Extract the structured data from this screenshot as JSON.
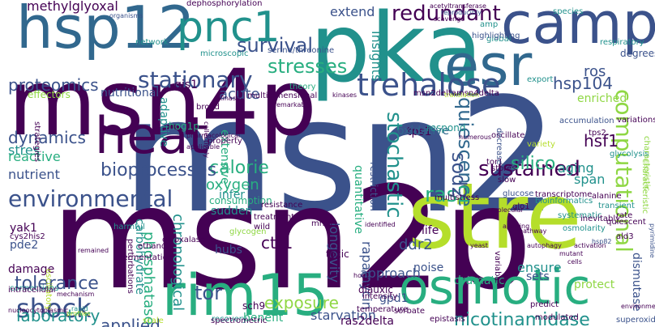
{
  "background": "#ffffff",
  "palette": {
    "dark_purple": "#440154",
    "indigo": "#3b528b",
    "blue": "#31688e",
    "teal": "#21918c",
    "green_teal": "#28ae80",
    "green": "#5ec962",
    "lime": "#8fd744",
    "yellow_green": "#b5de2b",
    "yellow": "#fde725"
  },
  "words": [
    "msn2",
    "msn2p",
    "msn4p",
    "pka",
    "stre",
    "esr",
    "camp",
    "hsp12",
    "pnc1",
    "rim15",
    "osmotic",
    "heat",
    "trehalose",
    "stationary",
    "survival",
    "redundant",
    "stresses",
    "proteomics",
    "hsp104",
    "shock",
    "calorie",
    "environmental",
    "quiescence",
    "stochastic",
    "sustained",
    "dynamics",
    "ras2",
    "ctt1",
    "exposure",
    "tolerance",
    "tor",
    "laboratory",
    "applied",
    "sod2",
    "computational",
    "nicotinamidase",
    "chronological",
    "longevity",
    "starvation",
    "phosphatase",
    "bioprocesses",
    "oxygen",
    "ddr2",
    "silico",
    "hsf1",
    "methylglyoxal",
    "nutritional",
    "extend",
    "insights",
    "ros",
    "acute",
    "aging",
    "span",
    "tps1",
    "stres",
    "nutrient",
    "reactive",
    "carbohydrate",
    "yak1",
    "pde2",
    "cys2his2",
    "damage",
    "glyoxalase",
    "sudden",
    "hubs",
    "toxic",
    "rapamycin",
    "approach",
    "noise",
    "dramatic",
    "protect",
    "ensure",
    "sets",
    "dismutase",
    "benefit",
    "gpd1",
    "ras2delta",
    "sch9",
    "diauxic",
    "life",
    "oxidative",
    "respond",
    "infer",
    "gis1",
    "hog1p",
    "adaptive",
    "consumption",
    "extensive",
    "quantitative",
    "restriction",
    "enriched",
    "degrees",
    "respiratory",
    "species",
    "effectors",
    "dephosphorylation",
    "serine/threonine",
    "microscopic",
    "multidimensional",
    "msn2deltamsn4delta",
    "accumulation",
    "variations",
    "oscillate",
    "network",
    "global",
    "amp",
    "highlighting",
    "theory",
    "variety",
    "export",
    "strategies",
    "broad",
    "resistance",
    "treatment",
    "wild",
    "mrnas",
    "harmful",
    "glycogen",
    "ethanol",
    "fermentation",
    "perturbations",
    "connections",
    "oscillatory",
    "intracellular",
    "multistress",
    "glucose",
    "tor1",
    "decrease",
    "transcriptome",
    "glo1",
    "stores",
    "systematic",
    "osmolarity",
    "quiescent",
    "ald3",
    "tps2",
    "alanine",
    "inevitably",
    "rate",
    "bioinformatics",
    "transient",
    "glycolysis",
    "characteristic",
    "slow",
    "property",
    "recovery",
    "temperature",
    "intensity",
    "predict",
    "modulated",
    "sorbate",
    "spectrometric",
    "scale",
    "superoxide",
    "epistasis",
    "variable",
    "characteristic",
    "nucleocytoplasmic",
    "remarkably",
    "collectively",
    "organisms",
    "scavenge",
    "acetyltransferase",
    "reproducibly",
    "autophagy",
    "profiles",
    "kinases",
    "translation",
    "hog1",
    "hsp82",
    "environment",
    "pyrimidine",
    "applicable",
    "remained",
    "pharmacological",
    "kinase",
    "rapid",
    "phase",
    "numerous",
    "molecular",
    "allowing",
    "mechanism",
    "identified",
    "pathway",
    "activation",
    "mutant",
    "cells",
    "yeast",
    "strains"
  ]
}
